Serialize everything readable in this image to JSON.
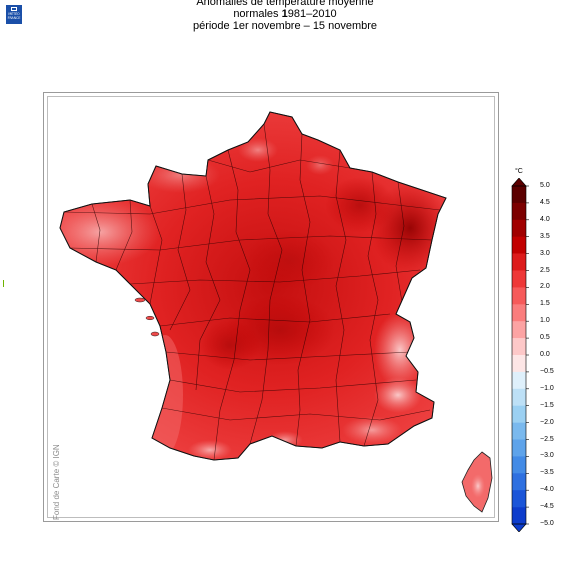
{
  "header": {
    "title_line1": "Anomalies de température moyenne",
    "title_line2_prefix": "normales ",
    "title_line2_bold": "1",
    "title_line2_rest": "981–2010",
    "title_line3": "période 1er novembre – 15 novembre"
  },
  "logo": {
    "line1": "MÉTÉO",
    "line2": "FRANCE",
    "color": "#1a4fa8"
  },
  "map": {
    "credit": "Fond de Carte © IGN",
    "region_main": "France métropolitaine",
    "region_island": "Corse",
    "dominant_color": "#ee3333"
  },
  "legend": {
    "unit": "°C",
    "ticks": [
      "5.0",
      "4.5",
      "4.0",
      "3.5",
      "3.0",
      "2.5",
      "2.0",
      "1.5",
      "1.0",
      "0.5",
      "0.0",
      "−0.5",
      "−1.0",
      "−1.5",
      "−2.0",
      "−2.5",
      "−3.0",
      "−3.5",
      "−4.0",
      "−4.5",
      "−5.0"
    ],
    "colors": [
      "#5c0000",
      "#7c0000",
      "#a10000",
      "#c20000",
      "#dd1b1b",
      "#ee3838",
      "#f65a5a",
      "#fa7d7d",
      "#fca3a3",
      "#fdc8c8",
      "#fde6e6",
      "#dff0fb",
      "#bde0f6",
      "#9bd0f2",
      "#7ab9ee",
      "#5ea3ea",
      "#438be6",
      "#2e70e0",
      "#1b55d8",
      "#0d3ccc"
    ]
  }
}
